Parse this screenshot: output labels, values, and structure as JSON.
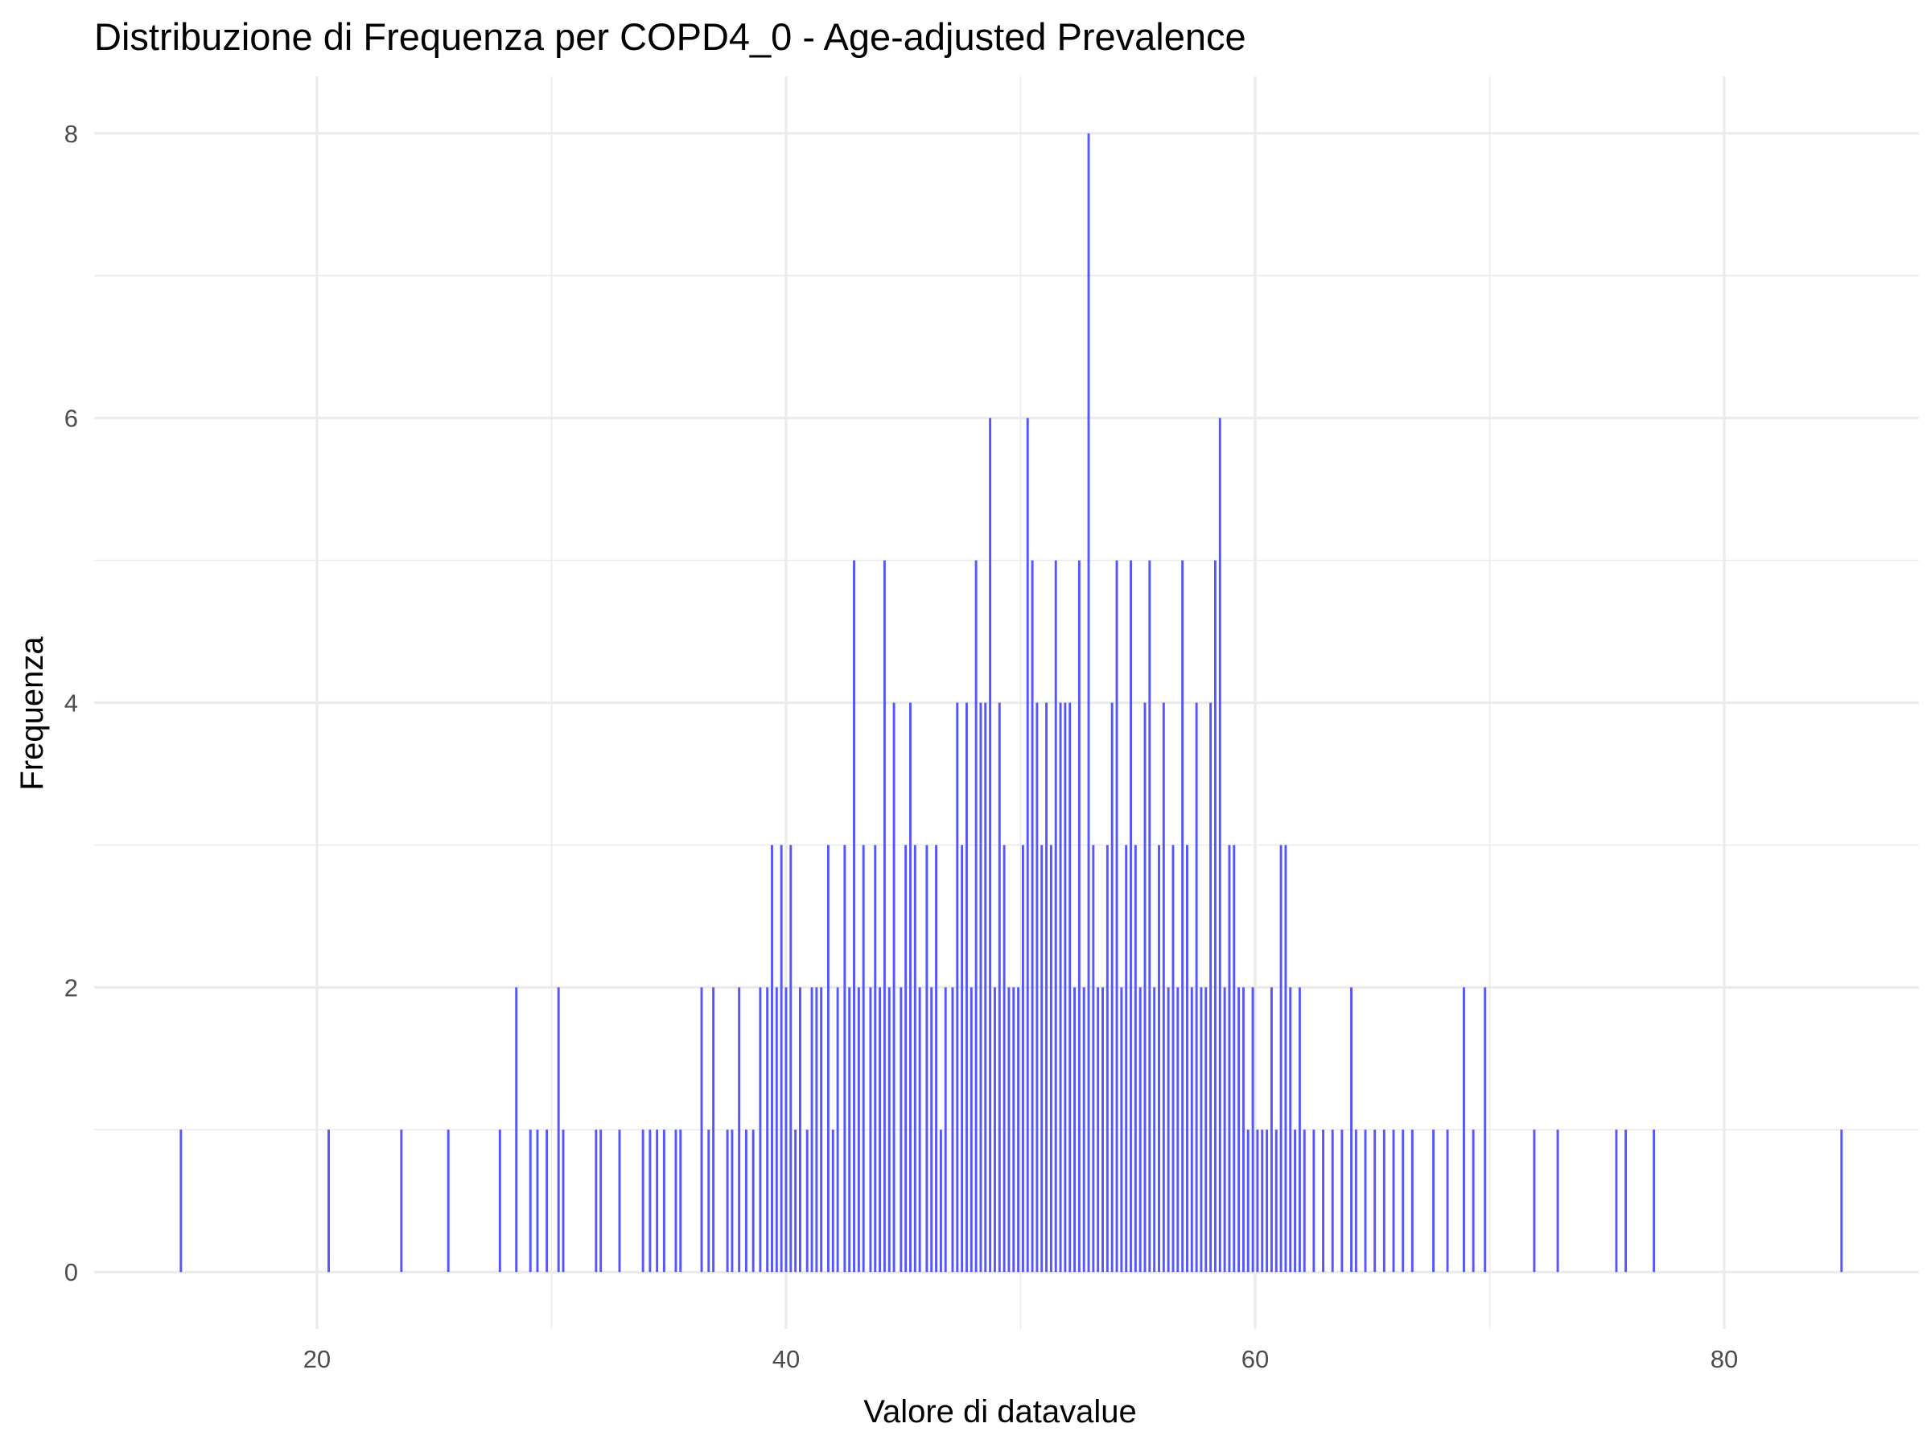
{
  "chart_data": {
    "type": "bar",
    "title": "Distribuzione di Frequenza per COPD4_0 - Age-adjusted Prevalence",
    "xlabel": "Valore di datavalue",
    "ylabel": "Frequenza",
    "xlim": [
      10.5,
      88.3
    ],
    "ylim": [
      -0.4,
      8.4
    ],
    "x_ticks": [
      20,
      40,
      60,
      80
    ],
    "x_minor_ticks": [
      10,
      30,
      50,
      70
    ],
    "y_ticks": [
      0,
      2,
      4,
      6,
      8
    ],
    "y_minor_ticks": [
      1,
      3,
      5,
      7
    ],
    "grid": true,
    "bar_color": "#4d4dff",
    "bar_width": 0.1,
    "x": [
      14.2,
      20.5,
      23.6,
      25.6,
      27.8,
      28.5,
      29.1,
      29.4,
      29.8,
      30.3,
      30.5,
      31.9,
      32.1,
      32.9,
      33.9,
      34.2,
      34.5,
      34.8,
      35.3,
      35.5,
      36.4,
      36.7,
      36.9,
      37.5,
      37.7,
      38.0,
      38.3,
      38.6,
      38.9,
      39.2,
      39.4,
      39.6,
      39.8,
      40.0,
      40.2,
      40.4,
      40.6,
      40.9,
      41.1,
      41.3,
      41.5,
      41.8,
      42.0,
      42.2,
      42.5,
      42.7,
      42.9,
      43.1,
      43.3,
      43.6,
      43.8,
      44.0,
      44.2,
      44.4,
      44.6,
      44.9,
      45.1,
      45.3,
      45.5,
      45.7,
      46.0,
      46.2,
      46.4,
      46.6,
      46.8,
      47.1,
      47.3,
      47.5,
      47.7,
      47.9,
      48.1,
      48.3,
      48.5,
      48.7,
      48.9,
      49.1,
      49.3,
      49.5,
      49.7,
      49.9,
      50.1,
      50.3,
      50.5,
      50.7,
      50.9,
      51.1,
      51.3,
      51.5,
      51.7,
      51.9,
      52.1,
      52.3,
      52.5,
      52.7,
      52.9,
      53.1,
      53.3,
      53.5,
      53.7,
      53.9,
      54.1,
      54.3,
      54.5,
      54.7,
      54.9,
      55.1,
      55.3,
      55.5,
      55.7,
      55.9,
      56.1,
      56.3,
      56.5,
      56.7,
      56.9,
      57.1,
      57.3,
      57.5,
      57.7,
      57.9,
      58.1,
      58.3,
      58.5,
      58.7,
      58.9,
      59.1,
      59.3,
      59.5,
      59.7,
      59.9,
      60.1,
      60.3,
      60.5,
      60.7,
      60.9,
      61.1,
      61.3,
      61.5,
      61.7,
      61.9,
      62.1,
      62.5,
      62.9,
      63.3,
      63.7,
      64.1,
      64.3,
      64.7,
      65.1,
      65.5,
      65.9,
      66.3,
      66.7,
      67.6,
      68.2,
      68.9,
      69.3,
      69.8,
      71.9,
      72.9,
      75.4,
      75.8,
      77.0,
      85.0
    ],
    "values": [
      1,
      1,
      1,
      1,
      1,
      2,
      1,
      1,
      1,
      2,
      1,
      1,
      1,
      1,
      1,
      1,
      1,
      1,
      1,
      1,
      2,
      1,
      2,
      1,
      1,
      2,
      1,
      1,
      2,
      2,
      3,
      2,
      3,
      2,
      3,
      1,
      2,
      1,
      2,
      2,
      2,
      3,
      1,
      2,
      3,
      2,
      5,
      2,
      3,
      2,
      3,
      2,
      5,
      2,
      4,
      2,
      3,
      4,
      3,
      2,
      3,
      2,
      3,
      1,
      2,
      2,
      4,
      3,
      4,
      2,
      5,
      4,
      4,
      6,
      2,
      4,
      3,
      2,
      2,
      2,
      3,
      6,
      5,
      4,
      3,
      4,
      3,
      5,
      4,
      4,
      4,
      2,
      5,
      2,
      8,
      3,
      2,
      2,
      3,
      4,
      5,
      2,
      3,
      5,
      3,
      2,
      4,
      5,
      2,
      3,
      4,
      2,
      3,
      2,
      5,
      3,
      2,
      4,
      2,
      2,
      4,
      5,
      6,
      2,
      3,
      3,
      2,
      2,
      1,
      2,
      1,
      1,
      1,
      2,
      1,
      3,
      3,
      2,
      1,
      2,
      1,
      1,
      1,
      1,
      1,
      2,
      1,
      1,
      1,
      1,
      1,
      1,
      1,
      1,
      1,
      2,
      1,
      2,
      1,
      1,
      1,
      1,
      1,
      1
    ]
  }
}
